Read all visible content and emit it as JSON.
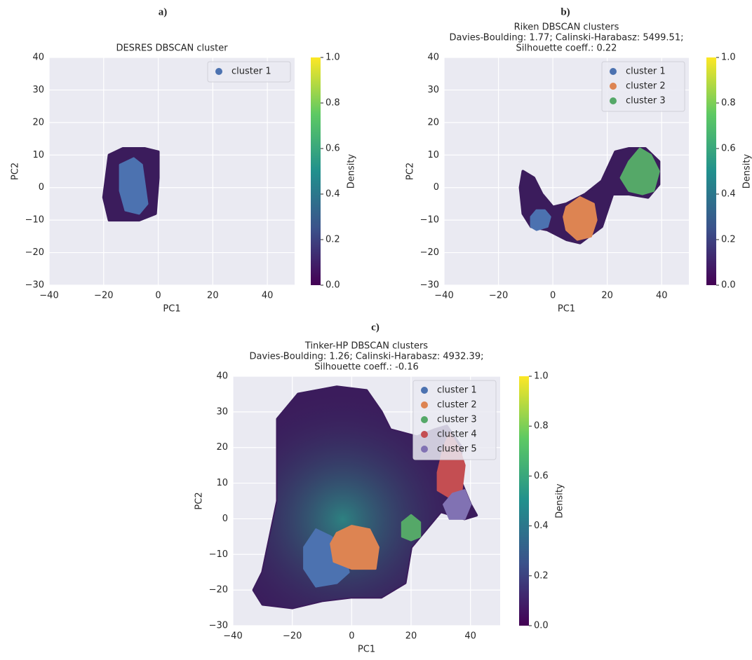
{
  "chart_data": [
    {
      "type": "scatter",
      "label": "a)",
      "title": [
        "DESRES DBSCAN cluster"
      ],
      "xlabel": "PC1",
      "ylabel": "PC2",
      "xlim": [
        -40,
        50
      ],
      "ylim": [
        -30,
        40
      ],
      "xticks": [
        {
          "value": -40,
          "label": "−40"
        },
        {
          "value": -20,
          "label": "−20"
        },
        0,
        20,
        40
      ],
      "yticks": [
        {
          "value": -30,
          "label": "−30"
        },
        {
          "value": -20,
          "label": "−20"
        },
        {
          "value": -10,
          "label": "−10"
        },
        0,
        10,
        20,
        30,
        40
      ],
      "grid": true,
      "legend": "upper right",
      "density": {
        "color": "#3b1c5c",
        "x": [
          -18,
          -13,
          -5,
          0,
          0,
          -1,
          -7,
          -18,
          -20
        ],
        "y": [
          10,
          12,
          12,
          11,
          3,
          -8,
          -10,
          -10,
          -3
        ]
      },
      "colorbar": {
        "label": "Density",
        "lim": [
          0,
          1
        ],
        "ticks": [
          {
            "value": 0,
            "label": "0.0"
          },
          0.2,
          0.4,
          0.6,
          0.8,
          {
            "value": 1,
            "label": "1.0"
          }
        ]
      },
      "series": [
        {
          "name": "cluster 1",
          "color": "#4c72b0",
          "x": [
            -14,
            -9,
            -6,
            -5,
            -4,
            -7,
            -12,
            -14
          ],
          "y": [
            7,
            9,
            7,
            1,
            -5,
            -8,
            -7,
            -1
          ]
        }
      ]
    },
    {
      "type": "scatter",
      "label": "b)",
      "title": [
        "Riken DBSCAN clusters",
        "Davies-Boulding: 1.77; Calinski-Harabasz: 5499.51;",
        "Silhouette coeff.: 0.22"
      ],
      "xlabel": "PC1",
      "ylabel": "PC2",
      "xlim": [
        -40,
        50
      ],
      "ylim": [
        -30,
        40
      ],
      "xticks": [
        {
          "value": -40,
          "label": "−40"
        },
        {
          "value": -20,
          "label": "−20"
        },
        0,
        20,
        40
      ],
      "yticks": [
        {
          "value": -30,
          "label": "−30"
        },
        {
          "value": -20,
          "label": "−20"
        },
        {
          "value": -10,
          "label": "−10"
        },
        0,
        10,
        20,
        30,
        40
      ],
      "grid": true,
      "legend": "upper right",
      "density": {
        "color": "#3b1c5c",
        "x": [
          -11,
          -7,
          -4,
          0,
          5,
          12,
          18,
          23,
          28,
          34,
          39,
          39,
          35,
          28,
          22,
          18,
          10,
          5,
          -2,
          -8,
          -11,
          -12
        ],
        "y": [
          5,
          3,
          -2,
          -6,
          -5,
          -2,
          2,
          11,
          12,
          12,
          8,
          1,
          -3,
          -2,
          -2,
          -12,
          -17,
          -16,
          -13,
          -12,
          -8,
          0
        ]
      },
      "colorbar": {
        "label": "Density",
        "lim": [
          0,
          1
        ],
        "ticks": [
          {
            "value": 0,
            "label": "0.0"
          },
          0.2,
          0.4,
          0.6,
          0.8,
          {
            "value": 1,
            "label": "1.0"
          }
        ]
      },
      "series": [
        {
          "name": "cluster 1",
          "color": "#4c72b0",
          "x": [
            -8,
            -6,
            -3,
            -1,
            -2,
            -6,
            -8
          ],
          "y": [
            -9,
            -7,
            -7,
            -9,
            -12,
            -13,
            -12
          ]
        },
        {
          "name": "cluster 2",
          "color": "#dd8452",
          "x": [
            5,
            10,
            15,
            16,
            14,
            9,
            5,
            4
          ],
          "y": [
            -6,
            -3,
            -5,
            -10,
            -15,
            -16,
            -13,
            -9
          ]
        },
        {
          "name": "cluster 3",
          "color": "#55a868",
          "x": [
            28,
            32,
            36,
            39,
            37,
            33,
            28,
            25
          ],
          "y": [
            8,
            12,
            10,
            5,
            -1,
            -2,
            -1,
            3
          ]
        }
      ]
    },
    {
      "type": "scatter",
      "label": "c)",
      "title": [
        "Tinker-HP DBSCAN clusters",
        "Davies-Boulding: 1.26; Calinski-Harabasz: 4932.39;",
        "Silhouette coeff.: -0.16"
      ],
      "xlabel": "PC1",
      "ylabel": "PC2",
      "xlim": [
        -40,
        50
      ],
      "ylim": [
        -30,
        40
      ],
      "xticks": [
        {
          "value": -40,
          "label": "−40"
        },
        {
          "value": -20,
          "label": "−20"
        },
        0,
        20,
        40
      ],
      "yticks": [
        {
          "value": -30,
          "label": "−30"
        },
        {
          "value": -20,
          "label": "−20"
        },
        {
          "value": -10,
          "label": "−10"
        },
        0,
        10,
        20,
        30,
        40
      ],
      "grid": true,
      "legend": "upper right",
      "density": {
        "color": "#3b1c5c",
        "x": [
          -30,
          -25,
          -25,
          -18,
          -5,
          5,
          10,
          13,
          22,
          28,
          32,
          37,
          36,
          40,
          42,
          38,
          30,
          25,
          20,
          18,
          10,
          0,
          -10,
          -20,
          -30,
          -33
        ],
        "y": [
          -15,
          5,
          28,
          35,
          37,
          36,
          30,
          25,
          23,
          25,
          26,
          20,
          12,
          4,
          1,
          0,
          2,
          -3,
          -8,
          -18,
          -22,
          -22,
          -23,
          -25,
          -24,
          -20
        ]
      },
      "colorbar": {
        "label": "Density",
        "lim": [
          0,
          1
        ],
        "ticks": [
          {
            "value": 0,
            "label": "0.0"
          },
          0.2,
          0.4,
          0.6,
          0.8,
          {
            "value": 1,
            "label": "1.0"
          }
        ]
      },
      "series": [
        {
          "name": "cluster 1",
          "color": "#4c72b0",
          "x": [
            -12,
            -7,
            -3,
            -1,
            -5,
            -12,
            -16,
            -16
          ],
          "y": [
            -3,
            -5,
            -8,
            -15,
            -18,
            -19,
            -14,
            -8
          ]
        },
        {
          "name": "cluster 2",
          "color": "#dd8452",
          "x": [
            -5,
            0,
            6,
            9,
            8,
            0,
            -6,
            -7
          ],
          "y": [
            -4,
            -2,
            -3,
            -8,
            -14,
            -14,
            -12,
            -7
          ]
        },
        {
          "name": "cluster 3",
          "color": "#55a868",
          "x": [
            17,
            20,
            23,
            23,
            20,
            17
          ],
          "y": [
            -1,
            1,
            -1,
            -5,
            -6,
            -5
          ]
        },
        {
          "name": "cluster 4",
          "color": "#c44e52",
          "x": [
            29,
            31,
            33,
            36,
            38,
            37,
            33,
            29
          ],
          "y": [
            13,
            20,
            24,
            20,
            15,
            8,
            6,
            8
          ]
        },
        {
          "name": "cluster 5",
          "color": "#8172b3",
          "x": [
            31,
            34,
            38,
            40,
            38,
            33
          ],
          "y": [
            4,
            7,
            8,
            4,
            0,
            0
          ]
        }
      ]
    }
  ]
}
